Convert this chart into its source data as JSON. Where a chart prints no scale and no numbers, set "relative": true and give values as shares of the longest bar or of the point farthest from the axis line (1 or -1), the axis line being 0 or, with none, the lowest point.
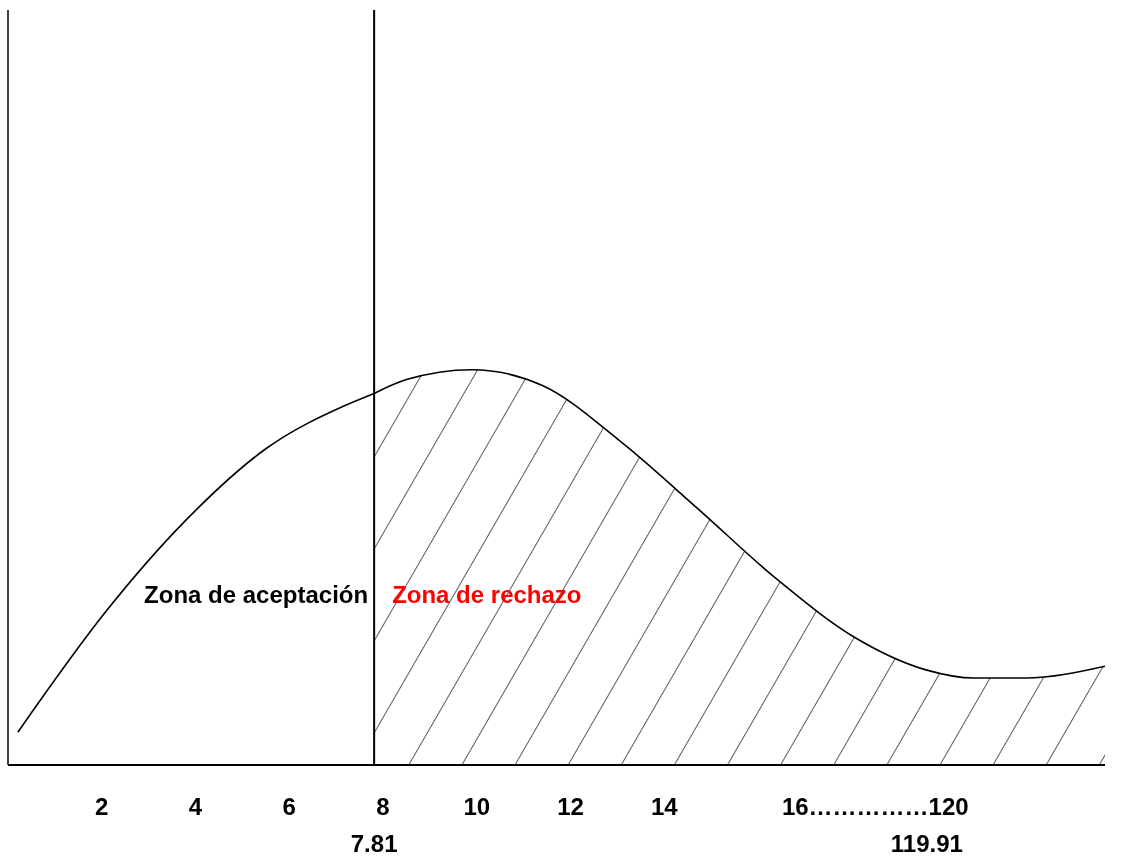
{
  "chart_data": {
    "type": "line",
    "relative": true,
    "tick_labels": "x",
    "series": [
      {
        "color": "#000000",
        "x": [
          0.21,
          2.1,
          3.8,
          5.5,
          7.2,
          7.81
        ],
        "values": [
          0.083,
          0.39,
          0.62,
          0.8,
          0.91,
          0.94
        ]
      },
      {
        "type": "area",
        "color": "#000000",
        "x": [
          7.81,
          8.5,
          9.9,
          11.4,
          13.05,
          14.7,
          16.4,
          18.1,
          19.6,
          20.6,
          21.7,
          23.4
        ],
        "values": [
          0.94,
          0.975,
          1.0,
          0.96,
          0.82,
          0.65,
          0.47,
          0.32,
          0.24,
          0.22,
          0.22,
          0.25
        ]
      }
    ],
    "xlim": [
      0,
      23.4
    ],
    "xticks": [
      2,
      4,
      6,
      8,
      10,
      12,
      14,
      {
        "value": 18.5,
        "label": "16……………120"
      }
    ],
    "ref_lines": [
      {
        "axis": "x",
        "value": 7.81,
        "label": "7.81",
        "color": "#000000"
      }
    ],
    "annotations": [
      "Zona de aceptación",
      "Zona de rechazo",
      "119.91"
    ]
  }
}
